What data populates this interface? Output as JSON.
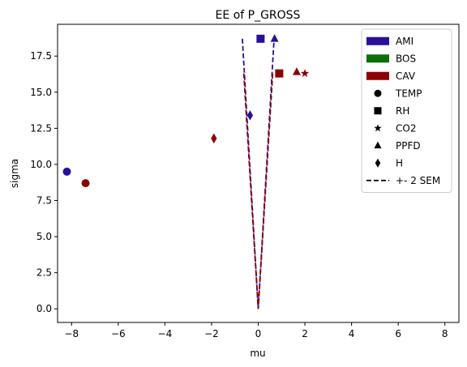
{
  "chart_data": {
    "type": "scatter",
    "title": "EE of P_GROSS",
    "xlabel": "mu",
    "ylabel": "sigma",
    "xlim": [
      -8.6,
      8.6
    ],
    "ylim": [
      -0.94,
      19.7
    ],
    "x_ticks": [
      -8,
      -6,
      -4,
      -2,
      0,
      2,
      4,
      6,
      8
    ],
    "x_tick_labels": [
      "−8",
      "−6",
      "−4",
      "−2",
      "0",
      "2",
      "4",
      "6",
      "8"
    ],
    "y_ticks": [
      0.0,
      2.5,
      5.0,
      7.5,
      10.0,
      12.5,
      15.0,
      17.5
    ],
    "y_tick_labels": [
      "0.0",
      "2.5",
      "5.0",
      "7.5",
      "10.0",
      "12.5",
      "15.0",
      "17.5"
    ],
    "grid": false,
    "legend_position": "top-right",
    "colors": {
      "AMI": "#2a0f9b",
      "BOS": "#0c6e0c",
      "CAV": "#8b0000"
    },
    "series": [
      {
        "name": "AMI",
        "color": "#2a0f9b",
        "points": [
          {
            "label": "TEMP",
            "marker": "circle",
            "x": -8.2,
            "y": 9.5
          },
          {
            "label": "RH",
            "marker": "square",
            "x": 0.1,
            "y": 18.7
          },
          {
            "label": "PPFD",
            "marker": "triangle",
            "x": 0.7,
            "y": 18.7
          },
          {
            "label": "H",
            "marker": "diamond",
            "x": -0.35,
            "y": 13.4
          }
        ],
        "sem_x": [
          -0.68,
          0,
          0.68
        ],
        "sem_y": [
          18.7,
          0,
          18.7
        ]
      },
      {
        "name": "CAV",
        "color": "#8b0000",
        "points": [
          {
            "label": "TEMP",
            "marker": "circle",
            "x": -7.4,
            "y": 8.7
          },
          {
            "label": "RH",
            "marker": "square",
            "x": 0.9,
            "y": 16.3
          },
          {
            "label": "CO2",
            "marker": "star",
            "x": 2.0,
            "y": 16.3
          },
          {
            "label": "PPFD",
            "marker": "triangle",
            "x": 1.65,
            "y": 16.4
          },
          {
            "label": "H",
            "marker": "diamond",
            "x": -1.9,
            "y": 11.8
          }
        ],
        "sem_x": [
          -0.62,
          0,
          0.62
        ],
        "sem_y": [
          16.3,
          0,
          16.3
        ]
      }
    ],
    "legend": {
      "colors": [
        {
          "label": "AMI",
          "color": "#2a0f9b"
        },
        {
          "label": "BOS",
          "color": "#0c6e0c"
        },
        {
          "label": "CAV",
          "color": "#8b0000"
        }
      ],
      "markers": [
        {
          "label": "TEMP",
          "marker": "circle"
        },
        {
          "label": "RH",
          "marker": "square"
        },
        {
          "label": "CO2",
          "marker": "star"
        },
        {
          "label": "PPFD",
          "marker": "triangle"
        },
        {
          "label": "H",
          "marker": "diamond"
        }
      ],
      "line": {
        "label": "+- 2 SEM",
        "style": "dashed"
      }
    }
  }
}
